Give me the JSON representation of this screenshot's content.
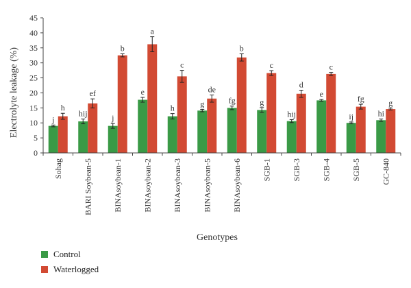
{
  "chart_data": {
    "type": "bar",
    "title": "",
    "ylabel": "Electrolyte leakage (%)",
    "xlabel": "Genotypes",
    "ylim": [
      0,
      45
    ],
    "yticks": [
      0,
      5,
      10,
      15,
      20,
      25,
      30,
      35,
      40,
      45
    ],
    "grid": false,
    "legend_position": "bottom-left",
    "categories": [
      "Sohag",
      "BARI Soybean-5",
      "BINAsoybean-1",
      "BINAsoybean-2",
      "BINAsoybean-3",
      "BINAsoybean-5",
      "BINAsoybean-6",
      "SGB-1",
      "SGB-3",
      "SGB-4",
      "SGB-5",
      "GC-840"
    ],
    "series": [
      {
        "name": "Control",
        "color": "#3a9a46",
        "values": [
          9.0,
          10.5,
          9.0,
          17.7,
          12.2,
          14.1,
          15.0,
          14.3,
          10.6,
          17.5,
          10.0,
          10.9
        ],
        "errors": [
          0.3,
          0.8,
          0.8,
          0.8,
          0.9,
          0.4,
          0.6,
          0.8,
          0.5,
          0.3,
          0.3,
          0.4
        ],
        "letters": [
          "j",
          "hij",
          "j",
          "e",
          "h",
          "g",
          "fg",
          "g",
          "hij",
          "e",
          "ij",
          "hi"
        ]
      },
      {
        "name": "Waterlogged",
        "color": "#d24a33",
        "values": [
          12.2,
          16.5,
          32.5,
          36.2,
          25.5,
          18.1,
          31.8,
          26.6,
          19.7,
          26.3,
          15.4,
          14.6
        ],
        "errors": [
          1.0,
          1.5,
          0.5,
          2.5,
          2.0,
          1.2,
          1.2,
          0.8,
          1.2,
          0.5,
          0.8,
          0.3
        ],
        "letters": [
          "h",
          "ef",
          "b",
          "a",
          "c",
          "de",
          "b",
          "c",
          "d",
          "c",
          "fg",
          "g"
        ]
      }
    ]
  }
}
